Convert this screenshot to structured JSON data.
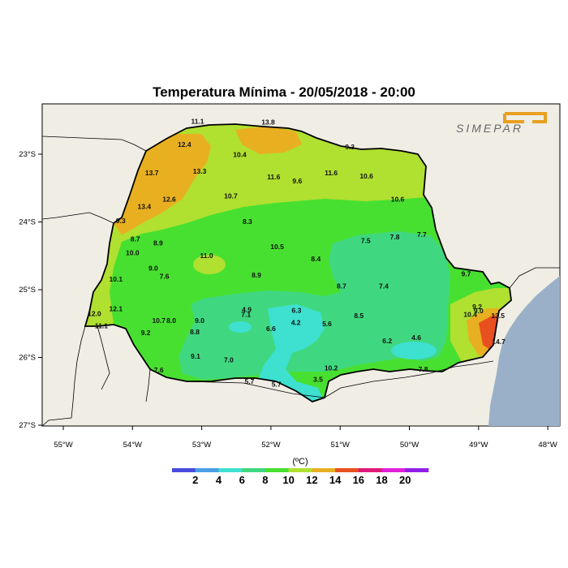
{
  "title": "Temperatura Mínima - 20/05/2018 - 20:00",
  "logo_text": "SIMEPAR",
  "colorbar": {
    "unit_label": "(ºC)",
    "ticks": [
      "2",
      "4",
      "6",
      "8",
      "10",
      "12",
      "14",
      "16",
      "18",
      "20"
    ],
    "colors": [
      "#4a4ae0",
      "#4aa0e8",
      "#3ee0d0",
      "#3fd880",
      "#48e030",
      "#b0e030",
      "#e8b020",
      "#e85020",
      "#e01878",
      "#e020d8",
      "#9020e8"
    ]
  },
  "axes": {
    "x_ticks": [
      {
        "lon": -55,
        "label": "55°W"
      },
      {
        "lon": -54,
        "label": "54°W"
      },
      {
        "lon": -53,
        "label": "53°W"
      },
      {
        "lon": -52,
        "label": "52°W"
      },
      {
        "lon": -51,
        "label": "51°W"
      },
      {
        "lon": -50,
        "label": "50°W"
      },
      {
        "lon": -49,
        "label": "49°W"
      },
      {
        "lon": -48,
        "label": "48°W"
      }
    ],
    "y_ticks": [
      {
        "lat": -23,
        "label": "23°S"
      },
      {
        "lat": -24,
        "label": "24°S"
      },
      {
        "lat": -25,
        "label": "25°S"
      },
      {
        "lat": -26,
        "label": "26°S"
      },
      {
        "lat": -27,
        "label": "27°S"
      }
    ]
  },
  "stations": [
    {
      "lon": -53.06,
      "lat": -22.55,
      "label": "11.1"
    },
    {
      "lon": -52.04,
      "lat": -22.56,
      "label": "13.8"
    },
    {
      "lon": -53.25,
      "lat": -22.89,
      "label": "12.4"
    },
    {
      "lon": -52.45,
      "lat": -23.04,
      "label": "10.4"
    },
    {
      "lon": -50.86,
      "lat": -22.93,
      "label": "9.3"
    },
    {
      "lon": -53.72,
      "lat": -23.31,
      "label": "13.7"
    },
    {
      "lon": -53.03,
      "lat": -23.29,
      "label": "13.3"
    },
    {
      "lon": -51.96,
      "lat": -23.37,
      "label": "11.6"
    },
    {
      "lon": -51.62,
      "lat": -23.43,
      "label": "9.6"
    },
    {
      "lon": -51.13,
      "lat": -23.31,
      "label": "11.6"
    },
    {
      "lon": -50.62,
      "lat": -23.36,
      "label": "10.6"
    },
    {
      "lon": -52.58,
      "lat": -23.65,
      "label": "10.7"
    },
    {
      "lon": -53.47,
      "lat": -23.7,
      "label": "12.6"
    },
    {
      "lon": -53.83,
      "lat": -23.81,
      "label": "13.4"
    },
    {
      "lon": -50.17,
      "lat": -23.7,
      "label": "10.6"
    },
    {
      "lon": -54.17,
      "lat": -24.02,
      "label": "9.3"
    },
    {
      "lon": -52.34,
      "lat": -24.03,
      "label": "8.3"
    },
    {
      "lon": -53.96,
      "lat": -24.29,
      "label": "8.7"
    },
    {
      "lon": -53.63,
      "lat": -24.35,
      "label": "8.9"
    },
    {
      "lon": -49.82,
      "lat": -24.22,
      "label": "7.7"
    },
    {
      "lon": -50.21,
      "lat": -24.26,
      "label": "7.8"
    },
    {
      "lon": -50.63,
      "lat": -24.31,
      "label": "7.5"
    },
    {
      "lon": -51.91,
      "lat": -24.4,
      "label": "10.5"
    },
    {
      "lon": -54.0,
      "lat": -24.49,
      "label": "10.0"
    },
    {
      "lon": -52.93,
      "lat": -24.53,
      "label": "11.0"
    },
    {
      "lon": -51.35,
      "lat": -24.58,
      "label": "8.4"
    },
    {
      "lon": -53.7,
      "lat": -24.72,
      "label": "9.0"
    },
    {
      "lon": -53.54,
      "lat": -24.84,
      "label": "7.6"
    },
    {
      "lon": -52.21,
      "lat": -24.82,
      "label": "8.9"
    },
    {
      "lon": -49.18,
      "lat": -24.8,
      "label": "9.7"
    },
    {
      "lon": -54.24,
      "lat": -24.88,
      "label": "10.1"
    },
    {
      "lon": -50.98,
      "lat": -24.98,
      "label": "8.7"
    },
    {
      "lon": -50.37,
      "lat": -24.98,
      "label": "7.4"
    },
    {
      "lon": -49.02,
      "lat": -25.29,
      "label": "9.2"
    },
    {
      "lon": -54.24,
      "lat": -25.32,
      "label": "12.1"
    },
    {
      "lon": -52.35,
      "lat": -25.33,
      "label": "4.9"
    },
    {
      "lon": -52.36,
      "lat": -25.4,
      "label": "7.1"
    },
    {
      "lon": -51.63,
      "lat": -25.34,
      "label": "6.3"
    },
    {
      "lon": -49.0,
      "lat": -25.35,
      "label": "9.0"
    },
    {
      "lon": -49.12,
      "lat": -25.4,
      "label": "10.4"
    },
    {
      "lon": -48.72,
      "lat": -25.42,
      "label": "13.5"
    },
    {
      "lon": -54.55,
      "lat": -25.39,
      "label": "12.0"
    },
    {
      "lon": -50.73,
      "lat": -25.42,
      "label": "8.5"
    },
    {
      "lon": -53.62,
      "lat": -25.49,
      "label": "10.7"
    },
    {
      "lon": -53.44,
      "lat": -25.49,
      "label": "8.0"
    },
    {
      "lon": -53.03,
      "lat": -25.49,
      "label": "9.0"
    },
    {
      "lon": -51.64,
      "lat": -25.52,
      "label": "4.2"
    },
    {
      "lon": -51.19,
      "lat": -25.54,
      "label": "5.6"
    },
    {
      "lon": -54.45,
      "lat": -25.57,
      "label": "11.1"
    },
    {
      "lon": -52.0,
      "lat": -25.61,
      "label": "6.6"
    },
    {
      "lon": -53.81,
      "lat": -25.67,
      "label": "9.2"
    },
    {
      "lon": -53.1,
      "lat": -25.66,
      "label": "8.8"
    },
    {
      "lon": -50.32,
      "lat": -25.79,
      "label": "6.2"
    },
    {
      "lon": -49.9,
      "lat": -25.74,
      "label": "4.6"
    },
    {
      "lon": -48.71,
      "lat": -25.8,
      "label": "14.7"
    },
    {
      "lon": -53.09,
      "lat": -26.02,
      "label": "9.1"
    },
    {
      "lon": -52.61,
      "lat": -26.07,
      "label": "7.0"
    },
    {
      "lon": -51.13,
      "lat": -26.19,
      "label": "10.2"
    },
    {
      "lon": -49.8,
      "lat": -26.21,
      "label": "7.8"
    },
    {
      "lon": -53.62,
      "lat": -26.22,
      "label": "7.6"
    },
    {
      "lon": -52.31,
      "lat": -26.39,
      "label": "5.7"
    },
    {
      "lon": -51.32,
      "lat": -26.36,
      "label": "3.5"
    },
    {
      "lon": -51.92,
      "lat": -26.43,
      "label": "5.7"
    }
  ]
}
